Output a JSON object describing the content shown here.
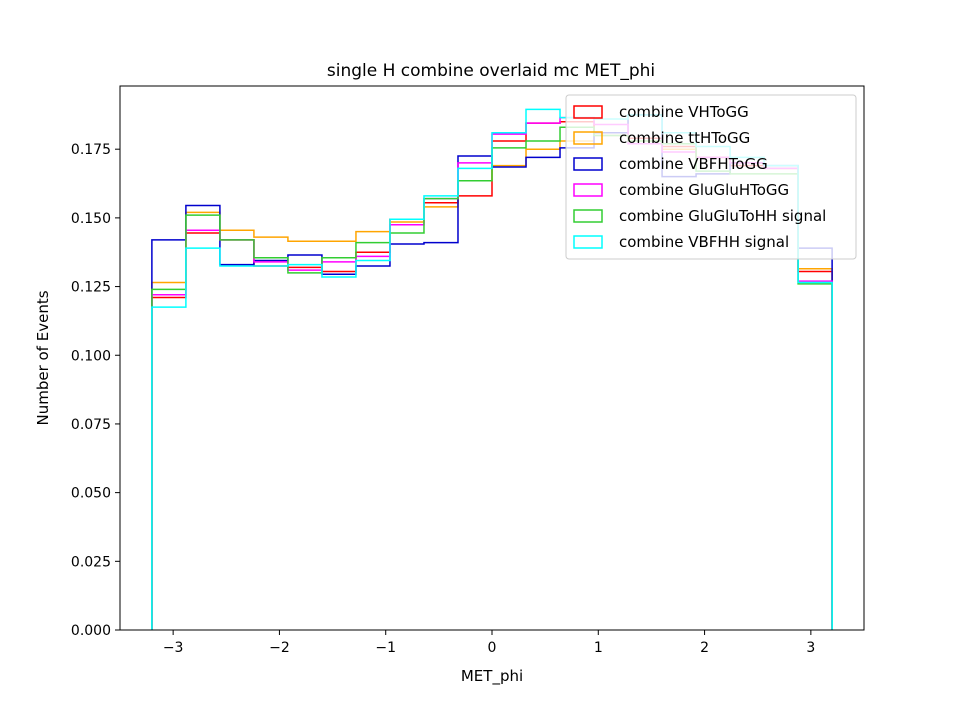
{
  "chart_data": {
    "type": "line",
    "style": "step-histogram",
    "title": "single H combine overlaid mc MET_phi",
    "xlabel": "MET_phi",
    "ylabel": "Number of Events",
    "xlim": [
      -3.5,
      3.5
    ],
    "ylim": [
      0,
      0.198
    ],
    "xticks": [
      -3,
      -2,
      -1,
      0,
      1,
      2,
      3
    ],
    "xtick_labels": [
      "−3",
      "−2",
      "−1",
      "0",
      "1",
      "2",
      "3"
    ],
    "yticks": [
      0,
      0.025,
      0.05,
      0.075,
      0.1,
      0.125,
      0.15,
      0.175
    ],
    "ytick_labels": [
      "0.000",
      "0.025",
      "0.050",
      "0.075",
      "0.100",
      "0.125",
      "0.150",
      "0.175"
    ],
    "grid": false,
    "legend_position": "top-right",
    "bin_edges": [
      -3.2,
      -2.88,
      -2.56,
      -2.24,
      -1.92,
      -1.6,
      -1.28,
      -0.96,
      -0.64,
      -0.32,
      0,
      0.32,
      0.64,
      0.96,
      1.28,
      1.6,
      1.92,
      2.24,
      2.56,
      2.88,
      3.2
    ],
    "series": [
      {
        "name": "combine VHToGG",
        "color": "#ff0000",
        "values": [
          0.121,
          0.1445,
          0.142,
          0.1325,
          0.132,
          0.1305,
          0.1375,
          0.1495,
          0.1555,
          0.158,
          0.178,
          0.1845,
          0.185,
          0.181,
          0.179,
          0.176,
          0.172,
          0.169,
          0.168,
          0.1305
        ]
      },
      {
        "name": "combine ttHToGG",
        "color": "#ffa500",
        "values": [
          0.1265,
          0.152,
          0.1455,
          0.143,
          0.1415,
          0.1415,
          0.145,
          0.1485,
          0.154,
          0.1635,
          0.169,
          0.175,
          0.178,
          0.18,
          0.178,
          0.175,
          0.172,
          0.17,
          0.168,
          0.1315
        ]
      },
      {
        "name": "combine VBFHToGG",
        "color": "#0000cd",
        "values": [
          0.142,
          0.1545,
          0.133,
          0.1345,
          0.1365,
          0.1295,
          0.1325,
          0.1405,
          0.141,
          0.1725,
          0.1685,
          0.172,
          0.1755,
          0.181,
          0.1875,
          0.165,
          0.166,
          0.17,
          0.169,
          0.139
        ]
      },
      {
        "name": "combine GluGluHToGG",
        "color": "#ff00ff",
        "values": [
          0.122,
          0.1455,
          0.142,
          0.134,
          0.131,
          0.134,
          0.136,
          0.1475,
          0.157,
          0.17,
          0.1805,
          0.1845,
          0.1865,
          0.184,
          0.177,
          0.174,
          0.172,
          0.17,
          0.168,
          0.127
        ]
      },
      {
        "name": "combine GluGluToHH signal",
        "color": "#32cd32",
        "values": [
          0.124,
          0.151,
          0.142,
          0.1355,
          0.13,
          0.1355,
          0.141,
          0.1445,
          0.157,
          0.1635,
          0.1755,
          0.178,
          0.183,
          0.18,
          0.178,
          0.177,
          0.167,
          0.166,
          0.166,
          0.126
        ]
      },
      {
        "name": "combine VBFHH signal",
        "color": "#00ffff",
        "values": [
          0.1175,
          0.139,
          0.1325,
          0.1325,
          0.133,
          0.1285,
          0.1345,
          0.1495,
          0.158,
          0.168,
          0.181,
          0.1895,
          0.1865,
          0.186,
          0.1875,
          0.181,
          0.176,
          0.172,
          0.169,
          0.1265
        ]
      }
    ]
  }
}
